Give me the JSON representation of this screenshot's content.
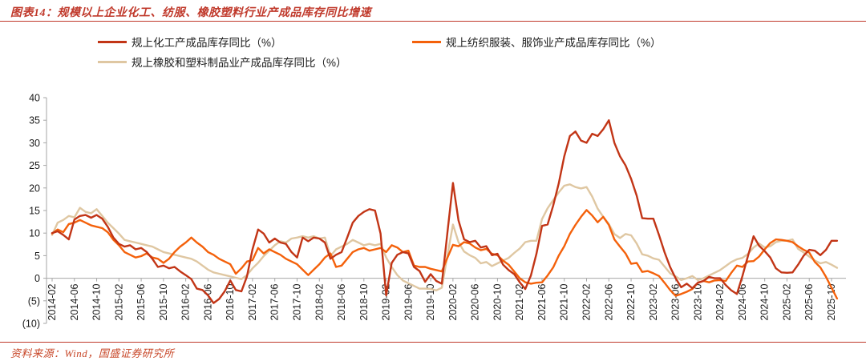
{
  "header": {
    "title": "图表14：规模以上企业化工、纺服、橡胶塑料行业产成品库存同比增速"
  },
  "footer": {
    "source": "资料来源：Wind，国盛证券研究所"
  },
  "colors": {
    "accent_red": "#c0392b",
    "series_chemical": "#c23516",
    "series_textile": "#f4610b",
    "series_rubber": "#dfc7a2",
    "axis_line": "#a6a6a6",
    "axis_text": "#333333"
  },
  "chart_data": {
    "type": "line",
    "title": "规模以上企业化工、纺服、橡胶塑料行业产成品库存同比增速",
    "ylabel": "",
    "xlabel": "",
    "ylim": [
      -10,
      40
    ],
    "ytick_labels": [
      "40",
      "35",
      "30",
      "25",
      "20",
      "15",
      "10",
      "5",
      "0",
      "(5)",
      "(10)"
    ],
    "yticks": [
      40,
      35,
      30,
      25,
      20,
      15,
      10,
      5,
      0,
      -5,
      -10
    ],
    "grid": "none",
    "legend_position": "top-left",
    "n_points": 142,
    "x_start": "2014-02",
    "x_end": "2025-12",
    "x_tick_every": 4,
    "x_tick_labels": [
      "2014-02",
      "2014-06",
      "2014-10",
      "2015-02",
      "2015-06",
      "2015-10",
      "2016-02",
      "2016-06",
      "2016-10",
      "2017-02",
      "2017-06",
      "2017-10",
      "2018-02",
      "2018-06",
      "2018-10",
      "2019-02",
      "2019-06",
      "2019-10",
      "2020-02",
      "2020-06",
      "2020-10",
      "2021-02",
      "2021-06",
      "2021-10",
      "2022-02",
      "2022-06",
      "2022-10",
      "2023-02",
      "2023-06",
      "2023-10",
      "2024-02",
      "2024-06",
      "2024-10",
      "2025-02",
      "2025-06",
      "2025-10"
    ],
    "series": [
      {
        "name": "规上化工产成品库存同比（%）",
        "color": "#c23516",
        "values": [
          10,
          10.4,
          9.6,
          8.6,
          13,
          13.8,
          14,
          13.4,
          14,
          13.2,
          11.4,
          9,
          7.6,
          7,
          7.3,
          6.4,
          6.7,
          5.8,
          4.3,
          2.5,
          2.8,
          2.2,
          2.5,
          1.5,
          0.7,
          -0.2,
          -2.3,
          -2.6,
          -3.8,
          -5.5,
          -4.6,
          -2.9,
          -0.5,
          -2.6,
          -2.9,
          0.4,
          6.4,
          10.8,
          9.9,
          7.9,
          8.8,
          7.9,
          7.6,
          5.8,
          4.6,
          9,
          8.2,
          9,
          8.8,
          7.9,
          4.3,
          5.2,
          5.8,
          9,
          12.3,
          13.8,
          14.7,
          15.3,
          15,
          9.9,
          -3.8,
          3.4,
          5.2,
          5.8,
          5.5,
          2.5,
          1.6,
          -0.8,
          0.9,
          -0.6,
          -1.2,
          10,
          21.1,
          12.8,
          8.6,
          8,
          8.3,
          6.8,
          7.1,
          5.1,
          5.4,
          3,
          1.8,
          0.9,
          -0.9,
          -2.4,
          0.6,
          5.4,
          11.6,
          11.9,
          16.1,
          21,
          27,
          31.5,
          32.5,
          30.5,
          30,
          32,
          31.5,
          33,
          35,
          30,
          27,
          25,
          22,
          18.3,
          13.3,
          13.2,
          13.2,
          9.6,
          5.8,
          2.5,
          0,
          -2,
          -1.2,
          -2.2,
          -1,
          -0.6,
          0.3,
          0,
          0,
          -1.5,
          -2.7,
          -3.5,
          0.5,
          5,
          9.3,
          7.2,
          6,
          4.6,
          2.2,
          1.3,
          1.2,
          1.3,
          3,
          5,
          6.3,
          6.1,
          5.1,
          6.3,
          8.3,
          8.3
        ]
      },
      {
        "name": "规上纺织服装、服饰业产成品库存同比（%）",
        "color": "#f4610b",
        "values": [
          9.9,
          10.8,
          10.2,
          12,
          12.3,
          12.9,
          12.3,
          11.7,
          11.4,
          11.1,
          10.2,
          8.5,
          7.3,
          5.8,
          5.2,
          4.6,
          4.9,
          5.5,
          4.6,
          4.3,
          3.4,
          4.3,
          5.8,
          7,
          7.9,
          9,
          7.9,
          7,
          5.8,
          5.2,
          4.3,
          3.7,
          3.1,
          1,
          2.2,
          3.7,
          4,
          6.7,
          5.5,
          6.4,
          5.8,
          5.2,
          4.3,
          3.7,
          3.1,
          1.9,
          0.7,
          1.9,
          3.1,
          4.6,
          5.5,
          2.5,
          2.8,
          4.3,
          5.8,
          6.4,
          6.7,
          6.1,
          6.4,
          6.7,
          5.8,
          7.3,
          6.8,
          5.8,
          6.1,
          2.8,
          2.5,
          2.5,
          2.1,
          1.8,
          1.5,
          4.5,
          7.4,
          7.1,
          8,
          7.7,
          6.8,
          6.2,
          6.5,
          5.4,
          5.1,
          3.9,
          3,
          1.5,
          0,
          -0.9,
          -1.2,
          -1,
          -0.9,
          0.6,
          2.4,
          5,
          7.1,
          9.8,
          11.8,
          13.6,
          15.1,
          13.9,
          12.4,
          13.6,
          11.8,
          8.6,
          7,
          5.5,
          3.2,
          3.4,
          1.4,
          1.6,
          1.1,
          0.5,
          -1,
          -2.6,
          -3.9,
          -3.5,
          -3,
          -2.4,
          -1,
          -0.6,
          -0.9,
          -0.5,
          -0.4,
          -0.6,
          1.2,
          2.8,
          2.5,
          3.7,
          3.8,
          4.8,
          6.4,
          7.8,
          8.6,
          8.5,
          8.3,
          8,
          7.1,
          6.3,
          5.7,
          3.6,
          2.4,
          0.3,
          -2.1,
          -4.5
        ]
      },
      {
        "name": "规上橡胶和塑料制品业产成品库存同比（%）",
        "color": "#dfc7a2",
        "values": [
          9.6,
          12.3,
          12.9,
          13.8,
          13.5,
          15.6,
          14.7,
          14.4,
          15.3,
          13.8,
          12.3,
          11.1,
          9.9,
          8.5,
          8.2,
          7.9,
          7.6,
          7.3,
          7,
          6.4,
          5.8,
          5.5,
          5.2,
          4.9,
          4.6,
          4.3,
          3.7,
          2.8,
          1.9,
          1.3,
          1,
          0.7,
          0.4,
          0.1,
          -0.2,
          0.7,
          2.2,
          3.4,
          4.9,
          6.1,
          7.3,
          8.2,
          7.9,
          8.8,
          9,
          9.3,
          9,
          9.3,
          8.8,
          9,
          4.9,
          6.4,
          7,
          7.6,
          8.5,
          7.9,
          7.3,
          7.6,
          7.3,
          7.6,
          4.6,
          2.5,
          0.7,
          -0.5,
          -1.1,
          -1.7,
          -2.3,
          -2.3,
          -2.4,
          -2.7,
          -2.1,
          5,
          11.9,
          8,
          5.9,
          5.1,
          4.5,
          3.3,
          3.6,
          2.7,
          3.3,
          3.9,
          4.5,
          5.6,
          6.6,
          8,
          8.3,
          8.3,
          13.1,
          15.5,
          17.3,
          19,
          20.5,
          20.8,
          20.2,
          19.9,
          20.2,
          18.1,
          15.4,
          13.6,
          12,
          9.8,
          8.9,
          9.8,
          9.5,
          7.7,
          5.3,
          5,
          4.4,
          4.1,
          2.6,
          1.1,
          0.4,
          -0.4,
          0,
          0.5,
          -0.4,
          0,
          0.6,
          1.2,
          1.8,
          2.7,
          3.6,
          4.2,
          4.5,
          5.4,
          6.8,
          7.7,
          6.8,
          7.1,
          8,
          8.3,
          8.3,
          8.6,
          6.5,
          5.7,
          4.8,
          3.9,
          3.3,
          3.6,
          3,
          2.3
        ]
      }
    ]
  }
}
